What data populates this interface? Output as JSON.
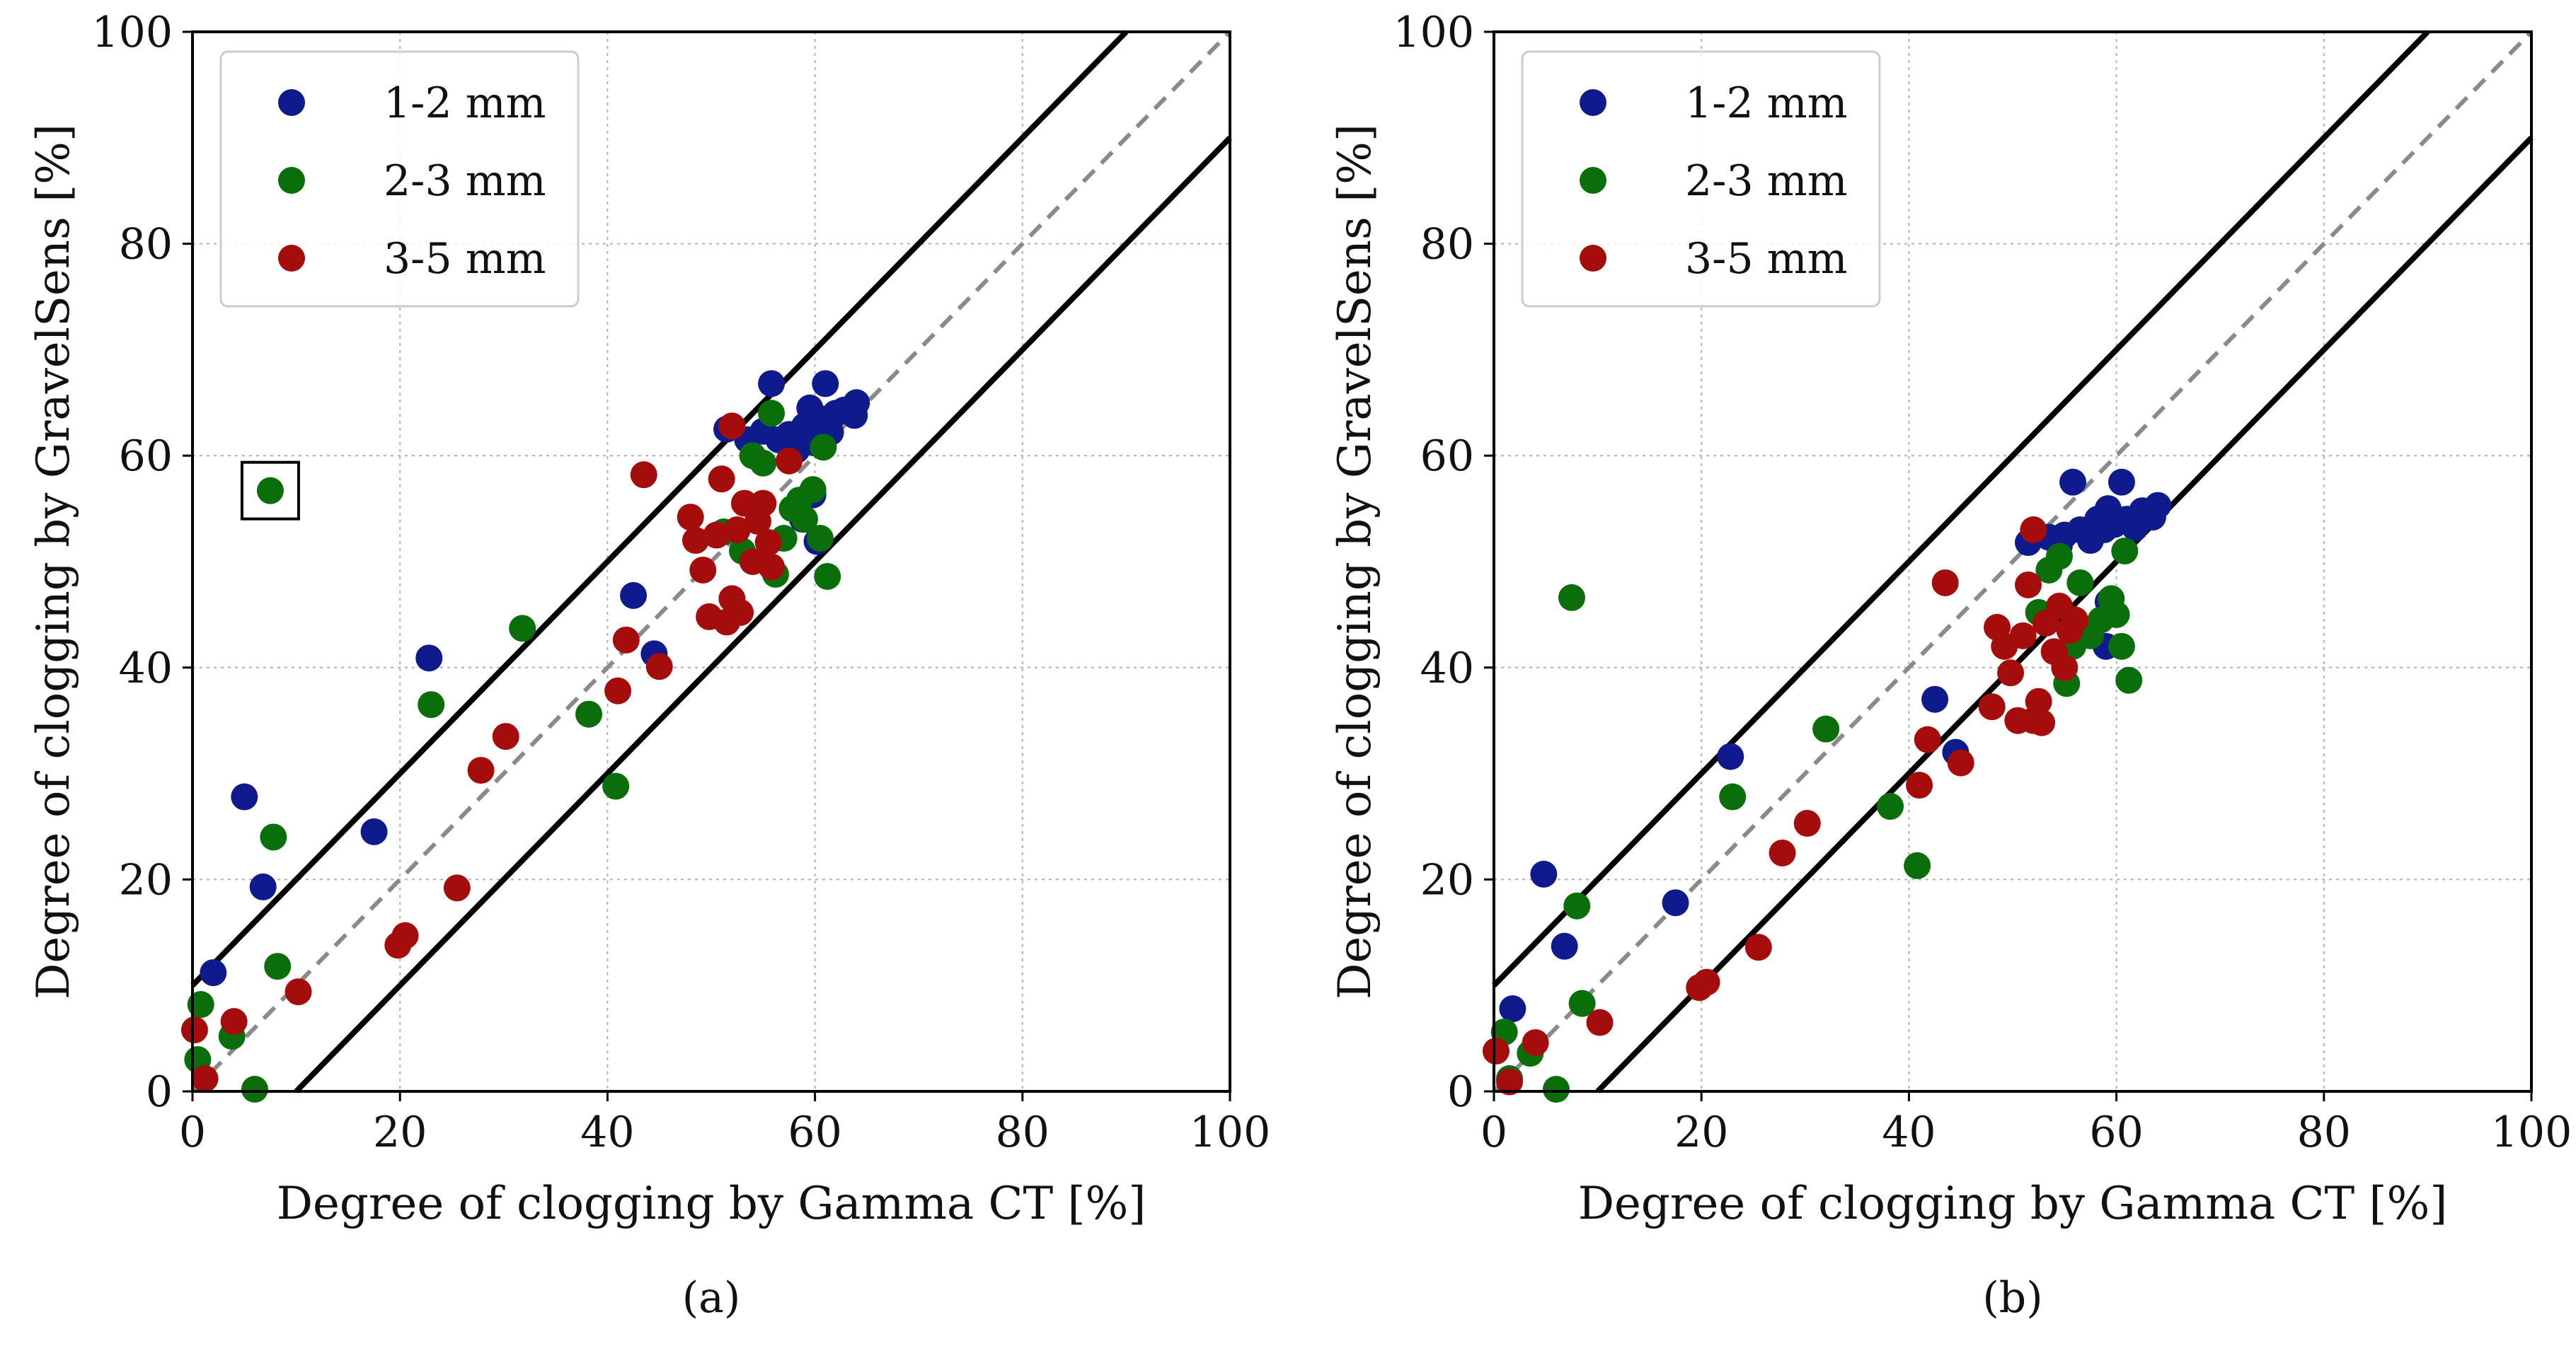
{
  "colors": {
    "series_1_2": "#0f1b8c",
    "series_2_3": "#0a6e0a",
    "series_3_5": "#a50d0d",
    "bound_line": "#000000",
    "identity_line": "#8a8a8a",
    "grid": "#b0b0b0"
  },
  "chart_data": [
    {
      "type": "scatter",
      "panel_label": "(a)",
      "xlabel": "Degree of clogging by Gamma CT [%]",
      "ylabel": "Degree of clogging by GravelSens [%]",
      "xlim": [
        0,
        100
      ],
      "ylim": [
        0,
        100
      ],
      "x_ticks": [
        0,
        20,
        40,
        60,
        80,
        100
      ],
      "y_ticks": [
        0,
        20,
        40,
        60,
        80,
        100
      ],
      "grid": true,
      "legend_position": "top-left",
      "reference_lines": [
        {
          "name": "upper bound",
          "style": "solid",
          "intercept": 10,
          "slope": 1
        },
        {
          "name": "identity",
          "style": "dashed",
          "intercept": 0,
          "slope": 1
        },
        {
          "name": "lower bound",
          "style": "solid",
          "intercept": -10,
          "slope": 1
        }
      ],
      "highlight_box": {
        "x": 7.5,
        "y": 56.7
      },
      "series": [
        {
          "name": "1-2 mm",
          "color_key": "series_1_2",
          "points": [
            [
              2,
              11.2
            ],
            [
              5,
              27.8
            ],
            [
              6.8,
              19.3
            ],
            [
              17.5,
              24.5
            ],
            [
              22.8,
              40.9
            ],
            [
              42.5,
              46.8
            ],
            [
              44.5,
              41.3
            ],
            [
              51.5,
              62.5
            ],
            [
              53.5,
              61.5
            ],
            [
              55,
              62.3
            ],
            [
              55.8,
              66.8
            ],
            [
              56.5,
              61.5
            ],
            [
              57.5,
              62
            ],
            [
              58.2,
              60.5
            ],
            [
              59,
              62.8
            ],
            [
              59.5,
              64.5
            ],
            [
              60,
              61.2
            ],
            [
              60.5,
              63.5
            ],
            [
              61,
              66.8
            ],
            [
              61.5,
              62.2
            ],
            [
              62,
              64
            ],
            [
              62.8,
              64.3
            ],
            [
              63.8,
              63.8
            ],
            [
              64,
              65
            ],
            [
              59.8,
              56.3
            ],
            [
              58.8,
              54
            ],
            [
              60.2,
              51.9
            ]
          ]
        },
        {
          "name": "2-3 mm",
          "color_key": "series_2_3",
          "points": [
            [
              0.5,
              3
            ],
            [
              0.8,
              8.2
            ],
            [
              3.8,
              5.2
            ],
            [
              6,
              0.2
            ],
            [
              7.8,
              24
            ],
            [
              8.2,
              11.8
            ],
            [
              7.5,
              56.7
            ],
            [
              23,
              36.5
            ],
            [
              31.8,
              43.7
            ],
            [
              38.2,
              35.6
            ],
            [
              40.8,
              28.8
            ],
            [
              51.2,
              52.8
            ],
            [
              53,
              51
            ],
            [
              54,
              60
            ],
            [
              55,
              59.3
            ],
            [
              55.8,
              64
            ],
            [
              56.2,
              48.8
            ],
            [
              57,
              52.2
            ],
            [
              57.8,
              55
            ],
            [
              58.5,
              55.8
            ],
            [
              59,
              54
            ],
            [
              59.8,
              56.8
            ],
            [
              60.5,
              52.2
            ],
            [
              60.8,
              60.8
            ],
            [
              61.2,
              48.6
            ]
          ]
        },
        {
          "name": "3-5 mm",
          "color_key": "series_3_5",
          "points": [
            [
              0.2,
              5.8
            ],
            [
              1.2,
              1.2
            ],
            [
              4,
              6.6
            ],
            [
              10.2,
              9.4
            ],
            [
              19.8,
              13.8
            ],
            [
              20.5,
              14.7
            ],
            [
              25.5,
              19.2
            ],
            [
              27.8,
              30.3
            ],
            [
              30.2,
              33.5
            ],
            [
              41,
              37.8
            ],
            [
              41.8,
              42.6
            ],
            [
              43.5,
              58.2
            ],
            [
              45,
              40.1
            ],
            [
              48,
              54.2
            ],
            [
              48.5,
              52
            ],
            [
              49.2,
              49.2
            ],
            [
              49.8,
              44.8
            ],
            [
              50.5,
              52.5
            ],
            [
              51,
              57.8
            ],
            [
              51.5,
              44.3
            ],
            [
              52,
              46.5
            ],
            [
              52.5,
              53
            ],
            [
              52.8,
              45.2
            ],
            [
              53.2,
              55.5
            ],
            [
              54,
              50
            ],
            [
              54.5,
              53.8
            ],
            [
              55,
              55.5
            ],
            [
              55.5,
              51.8
            ],
            [
              55.8,
              49.5
            ],
            [
              52,
              62.8
            ],
            [
              57.5,
              59.5
            ]
          ]
        }
      ]
    },
    {
      "type": "scatter",
      "panel_label": "(b)",
      "xlabel": "Degree of clogging by Gamma CT [%]",
      "ylabel": "Degree of clogging by GravelSens [%]",
      "xlim": [
        0,
        100
      ],
      "ylim": [
        0,
        100
      ],
      "x_ticks": [
        0,
        20,
        40,
        60,
        80,
        100
      ],
      "y_ticks": [
        0,
        20,
        40,
        60,
        80,
        100
      ],
      "grid": true,
      "legend_position": "top-left",
      "reference_lines": [
        {
          "name": "upper bound",
          "style": "solid",
          "intercept": 10,
          "slope": 1
        },
        {
          "name": "identity",
          "style": "dashed",
          "intercept": 0,
          "slope": 1
        },
        {
          "name": "lower bound",
          "style": "solid",
          "intercept": -10,
          "slope": 1
        }
      ],
      "series": [
        {
          "name": "1-2 mm",
          "color_key": "series_1_2",
          "points": [
            [
              1.8,
              7.8
            ],
            [
              4.8,
              20.5
            ],
            [
              6.8,
              13.7
            ],
            [
              17.5,
              17.8
            ],
            [
              22.8,
              31.6
            ],
            [
              42.5,
              37
            ],
            [
              44.5,
              32
            ],
            [
              51.5,
              51.8
            ],
            [
              53.5,
              52.3
            ],
            [
              54.5,
              51.5
            ],
            [
              55,
              52.5
            ],
            [
              55.8,
              57.5
            ],
            [
              56.5,
              53
            ],
            [
              57.5,
              52
            ],
            [
              58.2,
              54
            ],
            [
              58.8,
              53
            ],
            [
              59.2,
              55
            ],
            [
              59.8,
              53.5
            ],
            [
              60.5,
              57.5
            ],
            [
              61,
              54
            ],
            [
              61.8,
              53.2
            ],
            [
              62.5,
              54.8
            ],
            [
              63.5,
              54.2
            ],
            [
              64,
              55.3
            ],
            [
              59.2,
              46.2
            ],
            [
              59,
              42
            ]
          ]
        },
        {
          "name": "2-3 mm",
          "color_key": "series_2_3",
          "points": [
            [
              1,
              5.6
            ],
            [
              1.5,
              1.2
            ],
            [
              3.5,
              3.6
            ],
            [
              6,
              0.2
            ],
            [
              7.5,
              46.6
            ],
            [
              8,
              17.5
            ],
            [
              8.5,
              8.3
            ],
            [
              23,
              27.8
            ],
            [
              32,
              34.2
            ],
            [
              38.2,
              26.9
            ],
            [
              40.8,
              21.3
            ],
            [
              52.5,
              45.2
            ],
            [
              53.5,
              49.2
            ],
            [
              54.5,
              50.5
            ],
            [
              55.2,
              38.5
            ],
            [
              55.8,
              42
            ],
            [
              56.5,
              48
            ],
            [
              57.5,
              43
            ],
            [
              58.5,
              44.5
            ],
            [
              59.5,
              46.5
            ],
            [
              60,
              45
            ],
            [
              60.5,
              42
            ],
            [
              60.8,
              51
            ],
            [
              61.2,
              38.8
            ]
          ]
        },
        {
          "name": "3-5 mm",
          "color_key": "series_3_5",
          "points": [
            [
              0.2,
              3.8
            ],
            [
              1.5,
              0.9
            ],
            [
              4,
              4.6
            ],
            [
              10.2,
              6.5
            ],
            [
              19.8,
              9.8
            ],
            [
              20.5,
              10.3
            ],
            [
              25.5,
              13.6
            ],
            [
              27.8,
              22.5
            ],
            [
              30.2,
              25.3
            ],
            [
              41,
              28.9
            ],
            [
              41.8,
              33.2
            ],
            [
              43.5,
              48
            ],
            [
              45,
              31
            ],
            [
              48,
              36.3
            ],
            [
              48.5,
              43.8
            ],
            [
              49.2,
              42
            ],
            [
              49.8,
              39.5
            ],
            [
              50.5,
              35
            ],
            [
              51,
              43
            ],
            [
              51.5,
              47.8
            ],
            [
              52,
              35
            ],
            [
              52.5,
              36.8
            ],
            [
              52.8,
              34.8
            ],
            [
              53.2,
              44.2
            ],
            [
              54,
              41.5
            ],
            [
              54.5,
              45.8
            ],
            [
              55,
              40
            ],
            [
              55.5,
              43.5
            ],
            [
              56,
              44.5
            ],
            [
              52,
              53
            ]
          ]
        }
      ]
    }
  ]
}
